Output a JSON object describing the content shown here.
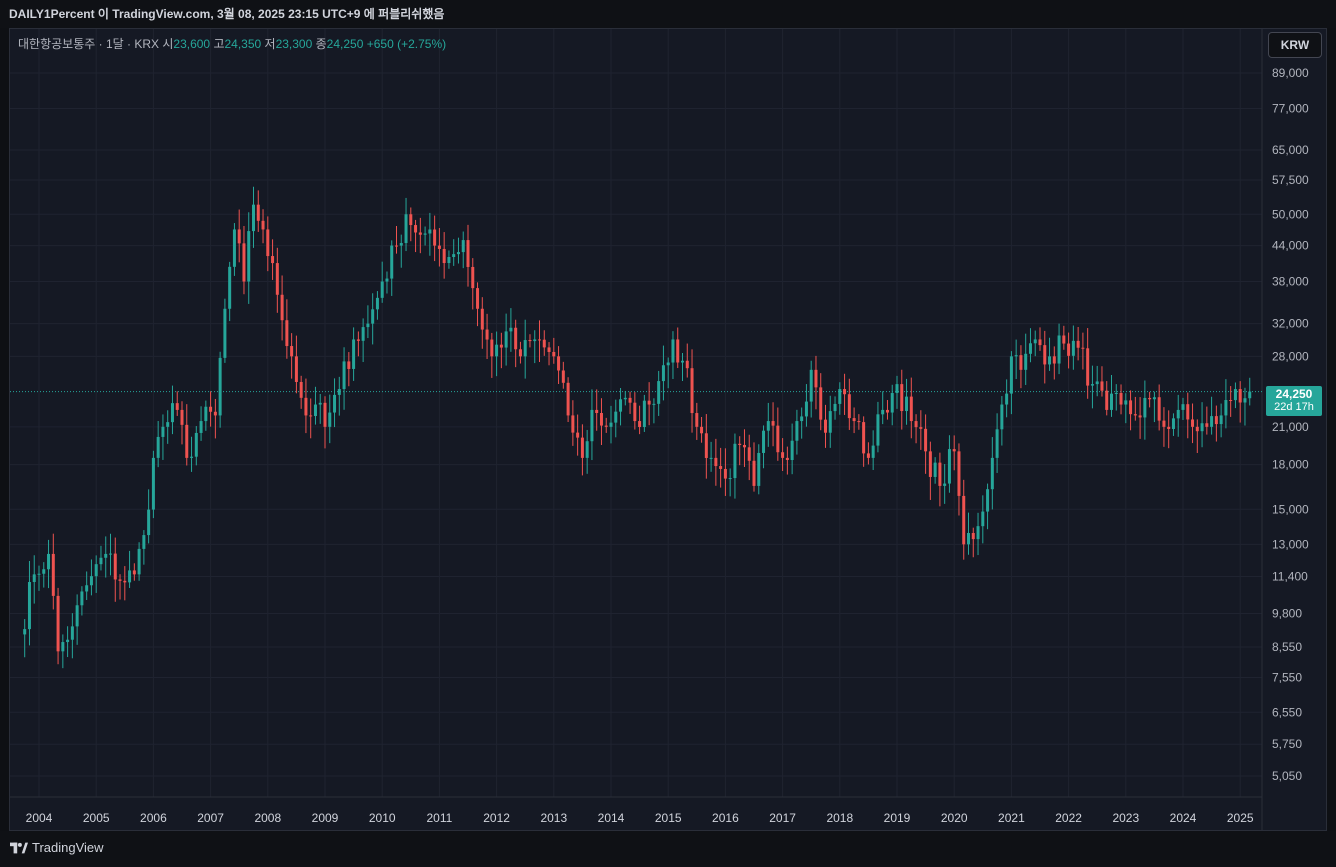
{
  "header": {
    "publish_text": "DAILY1Percent 이 TradingView.com, 3월 08, 2025 23:15 UTC+9 에 퍼블리쉬했음"
  },
  "legend": {
    "symbol": "대한항공보통주 · 1달 · KRX",
    "open_label": "시",
    "open": "23,600",
    "high_label": "고",
    "high": "24,350",
    "low_label": "저",
    "low": "23,300",
    "close_label": "종",
    "close": "24,250",
    "change": "+650 (+2.75%)"
  },
  "currency_button": "KRW",
  "price_tag": {
    "price": "24,250",
    "countdown": "22d 17h"
  },
  "footer": {
    "brand": "TradingView"
  },
  "colors": {
    "up": "#26a69a",
    "down": "#ef5350",
    "background": "#151924",
    "grid": "#1f2330"
  },
  "chart_data": {
    "type": "candlestick",
    "scale": "log",
    "y_ticks": [
      5050,
      5750,
      6550,
      7550,
      8550,
      9800,
      11400,
      13000,
      15000,
      18000,
      21000,
      24250,
      28000,
      32000,
      38000,
      44000,
      50000,
      57500,
      65000,
      77000,
      89000
    ],
    "y_tick_labels": [
      "5,050",
      "5,750",
      "6,550",
      "7,550",
      "8,550",
      "9,800",
      "11,400",
      "13,000",
      "15,000",
      "18,000",
      "21,000",
      "",
      "28,000",
      "32,000",
      "38,000",
      "44,000",
      "50,000",
      "57,500",
      "65,000",
      "77,000",
      "89,000"
    ],
    "x_ticks": [
      "2004",
      "2005",
      "2006",
      "2007",
      "2008",
      "2009",
      "2010",
      "2011",
      "2012",
      "2013",
      "2014",
      "2015",
      "2016",
      "2017",
      "2018",
      "2019",
      "2020",
      "2021",
      "2022",
      "2023",
      "2024",
      "2025"
    ],
    "ylim": [
      4600,
      100000
    ],
    "last_close": 24250,
    "monthly_close_anchors": [
      [
        "2003-09",
        9000
      ],
      [
        "2003-12",
        11500
      ],
      [
        "2004-03",
        12500
      ],
      [
        "2004-05",
        8400
      ],
      [
        "2004-08",
        9300
      ],
      [
        "2004-11",
        11000
      ],
      [
        "2005-03",
        12500
      ],
      [
        "2005-06",
        11200
      ],
      [
        "2005-09",
        11500
      ],
      [
        "2005-11",
        13500
      ],
      [
        "2006-01",
        18500
      ],
      [
        "2006-03",
        21000
      ],
      [
        "2006-06",
        22500
      ],
      [
        "2006-08",
        18500
      ],
      [
        "2006-11",
        21500
      ],
      [
        "2007-02",
        22000
      ],
      [
        "2007-04",
        34000
      ],
      [
        "2007-06",
        47000
      ],
      [
        "2007-08",
        38000
      ],
      [
        "2007-10",
        52000
      ],
      [
        "2007-12",
        47000
      ],
      [
        "2008-03",
        36000
      ],
      [
        "2008-06",
        28000
      ],
      [
        "2008-09",
        22000
      ],
      [
        "2008-11",
        23000
      ],
      [
        "2009-01",
        21000
      ],
      [
        "2009-04",
        24500
      ],
      [
        "2009-07",
        30000
      ],
      [
        "2009-10",
        32000
      ],
      [
        "2010-01",
        38000
      ],
      [
        "2010-04",
        44000
      ],
      [
        "2010-06",
        50000
      ],
      [
        "2010-09",
        46000
      ],
      [
        "2010-12",
        44000
      ],
      [
        "2011-03",
        42000
      ],
      [
        "2011-06",
        45000
      ],
      [
        "2011-09",
        34000
      ],
      [
        "2011-12",
        28000
      ],
      [
        "2012-03",
        31000
      ],
      [
        "2012-06",
        28000
      ],
      [
        "2012-09",
        30000
      ],
      [
        "2013-01",
        28000
      ],
      [
        "2013-04",
        22000
      ],
      [
        "2013-07",
        18500
      ],
      [
        "2013-09",
        22500
      ],
      [
        "2013-12",
        21000
      ],
      [
        "2014-03",
        23500
      ],
      [
        "2014-06",
        21500
      ],
      [
        "2014-09",
        23000
      ],
      [
        "2014-12",
        27000
      ],
      [
        "2015-02",
        30000
      ],
      [
        "2015-04",
        27500
      ],
      [
        "2015-07",
        21000
      ],
      [
        "2015-10",
        18500
      ],
      [
        "2016-01",
        17000
      ],
      [
        "2016-04",
        19500
      ],
      [
        "2016-07",
        16500
      ],
      [
        "2016-10",
        21500
      ],
      [
        "2017-01",
        18500
      ],
      [
        "2017-04",
        21500
      ],
      [
        "2017-07",
        26500
      ],
      [
        "2017-10",
        20500
      ],
      [
        "2018-01",
        24500
      ],
      [
        "2018-04",
        21500
      ],
      [
        "2018-07",
        18500
      ],
      [
        "2018-10",
        22500
      ],
      [
        "2019-01",
        25000
      ],
      [
        "2019-04",
        21500
      ],
      [
        "2019-07",
        19000
      ],
      [
        "2019-10",
        16500
      ],
      [
        "2020-01",
        19000
      ],
      [
        "2020-03",
        13000
      ],
      [
        "2020-06",
        14000
      ],
      [
        "2020-09",
        18500
      ],
      [
        "2020-11",
        23000
      ],
      [
        "2021-01",
        28000
      ],
      [
        "2021-03",
        26500
      ],
      [
        "2021-06",
        30000
      ],
      [
        "2021-09",
        28000
      ],
      [
        "2021-12",
        29500
      ],
      [
        "2022-03",
        29000
      ],
      [
        "2022-06",
        25000
      ],
      [
        "2022-09",
        22500
      ],
      [
        "2022-12",
        23000
      ],
      [
        "2023-03",
        22000
      ],
      [
        "2023-06",
        23500
      ],
      [
        "2023-09",
        21000
      ],
      [
        "2023-12",
        22500
      ],
      [
        "2024-03",
        21000
      ],
      [
        "2024-06",
        21000
      ],
      [
        "2024-09",
        22000
      ],
      [
        "2024-12",
        24500
      ],
      [
        "2025-02",
        23600
      ],
      [
        "2025-03",
        24250
      ]
    ]
  }
}
